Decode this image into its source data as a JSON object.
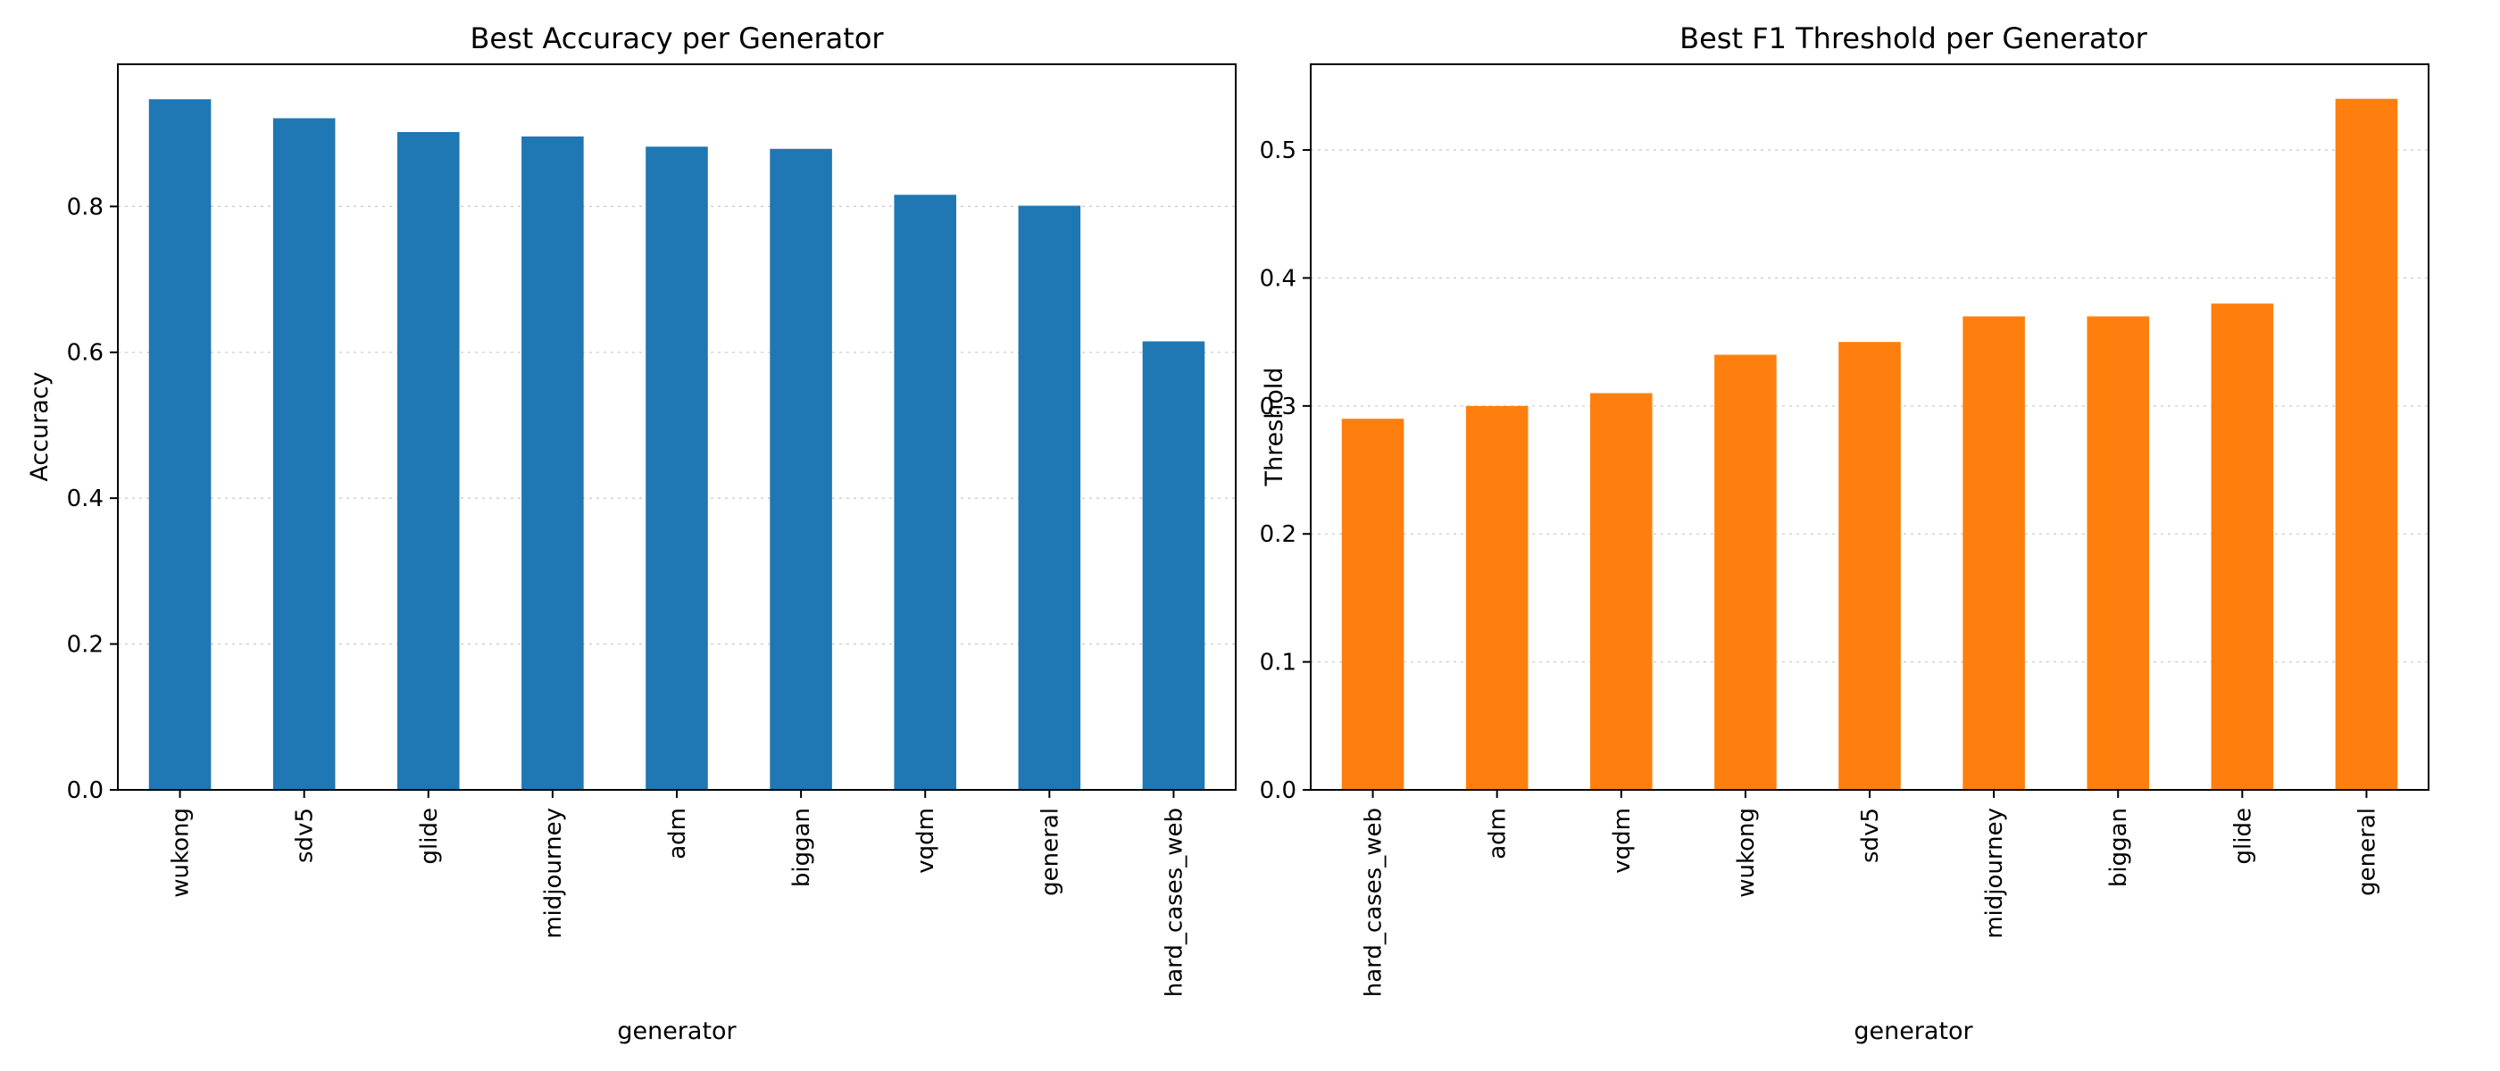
{
  "chart_data": [
    {
      "type": "bar",
      "title": "Best Accuracy per Generator",
      "xlabel": "generator",
      "ylabel": "Accuracy",
      "categories": [
        "wukong",
        "sdv5",
        "glide",
        "midjourney",
        "adm",
        "biggan",
        "vqdm",
        "general",
        "hard_cases_web"
      ],
      "values": [
        0.947,
        0.921,
        0.902,
        0.896,
        0.882,
        0.879,
        0.816,
        0.801,
        0.615
      ],
      "ylim": [
        0,
        0.995
      ],
      "yticks": [
        0.0,
        0.2,
        0.4,
        0.6,
        0.8
      ],
      "ytick_labels": [
        "0.0",
        "0.2",
        "0.4",
        "0.6",
        "0.8"
      ],
      "color": "#1f77b4",
      "grid": "y-dotted"
    },
    {
      "type": "bar",
      "title": "Best F1 Threshold per Generator",
      "xlabel": "generator",
      "ylabel": "Threshold",
      "categories": [
        "hard_cases_web",
        "adm",
        "vqdm",
        "wukong",
        "sdv5",
        "midjourney",
        "biggan",
        "glide",
        "general"
      ],
      "values": [
        0.29,
        0.3,
        0.31,
        0.34,
        0.35,
        0.37,
        0.37,
        0.38,
        0.54
      ],
      "ylim": [
        0,
        0.567
      ],
      "yticks": [
        0.0,
        0.1,
        0.2,
        0.3,
        0.4,
        0.5
      ],
      "ytick_labels": [
        "0.0",
        "0.1",
        "0.2",
        "0.3",
        "0.4",
        "0.5"
      ],
      "color": "#ff7f0e",
      "grid": "y-dotted"
    }
  ]
}
